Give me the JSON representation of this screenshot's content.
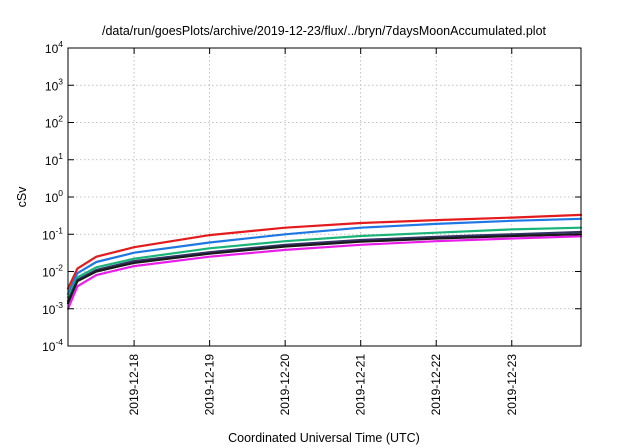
{
  "chart_data": {
    "type": "line",
    "title": "/data/run/goesPlots/archive/2019-12-23/flux/../bryn/7daysMoonAccumulated.plot",
    "xlabel": "Coordinated Universal Time (UTC)",
    "ylabel": "cSv",
    "y_scale": "log",
    "ylim": [
      0.0001,
      10000
    ],
    "xlim": [
      "2019-12-17T03:00",
      "2019-12-23T22:00"
    ],
    "x_tick_labels": [
      "2019-12-18",
      "2019-12-19",
      "2019-12-20",
      "2019-12-21",
      "2019-12-22",
      "2019-12-23"
    ],
    "y_tick_labels": [
      {
        "base": "10",
        "exp": "-4"
      },
      {
        "base": "10",
        "exp": "-3"
      },
      {
        "base": "10",
        "exp": "-2"
      },
      {
        "base": "10",
        "exp": "-1"
      },
      {
        "base": "10",
        "exp": "0"
      },
      {
        "base": "10",
        "exp": "1"
      },
      {
        "base": "10",
        "exp": "2"
      },
      {
        "base": "10",
        "exp": "3"
      },
      {
        "base": "10",
        "exp": "4"
      }
    ],
    "grid": true,
    "legend": "none",
    "x": [
      "2019-12-17T03:00",
      "2019-12-17T06:00",
      "2019-12-17T12:00",
      "2019-12-18T00:00",
      "2019-12-19T00:00",
      "2019-12-20T00:00",
      "2019-12-21T00:00",
      "2019-12-22T00:00",
      "2019-12-23T00:00",
      "2019-12-23T22:00"
    ],
    "series": [
      {
        "color": "#e41a1c",
        "values": [
          0.0035,
          0.012,
          0.025,
          0.045,
          0.095,
          0.15,
          0.2,
          0.24,
          0.28,
          0.33
        ]
      },
      {
        "color": "#1f77e4",
        "values": [
          0.0025,
          0.009,
          0.018,
          0.032,
          0.06,
          0.1,
          0.15,
          0.19,
          0.23,
          0.26
        ]
      },
      {
        "color": "#1ab47a",
        "values": [
          0.002,
          0.007,
          0.013,
          0.022,
          0.042,
          0.065,
          0.09,
          0.11,
          0.135,
          0.15
        ]
      },
      {
        "color": "#333366",
        "values": [
          0.0016,
          0.006,
          0.011,
          0.019,
          0.033,
          0.052,
          0.07,
          0.085,
          0.1,
          0.115
        ]
      },
      {
        "color": "#1a1a1a",
        "values": [
          0.0014,
          0.0055,
          0.01,
          0.017,
          0.03,
          0.047,
          0.063,
          0.077,
          0.09,
          0.1
        ]
      },
      {
        "color": "#e81ee8",
        "values": [
          0.001,
          0.004,
          0.008,
          0.014,
          0.025,
          0.038,
          0.052,
          0.065,
          0.077,
          0.088
        ]
      }
    ]
  }
}
